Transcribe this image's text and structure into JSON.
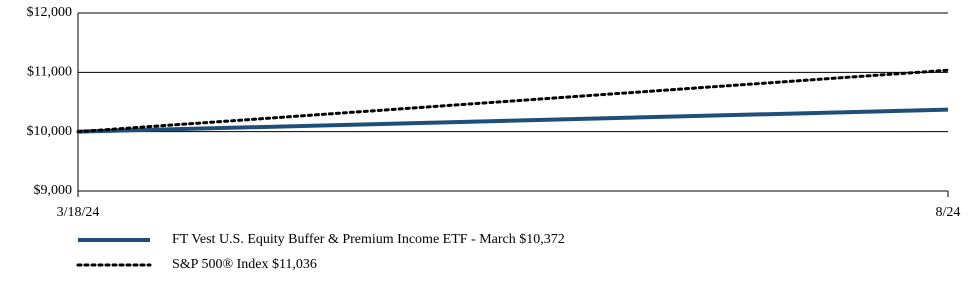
{
  "chart_data": {
    "type": "line",
    "categories": [
      "3/18/24",
      "8/24"
    ],
    "series": [
      {
        "name": "FT Vest U.S. Equity Buffer & Premium Income ETF - March $10,372",
        "color": "#1f4e79",
        "style": "solid",
        "values": [
          10000,
          10372
        ]
      },
      {
        "name": "S&P 500® Index $11,036",
        "color": "#000000",
        "style": "dotted",
        "values": [
          10000,
          11036
        ]
      }
    ],
    "ylim": [
      9000,
      12000
    ],
    "yticks": [
      {
        "value": 9000,
        "label": "$9,000"
      },
      {
        "value": 10000,
        "label": "$10,000"
      },
      {
        "value": 11000,
        "label": "$11,000"
      },
      {
        "value": 12000,
        "label": "$12,000"
      }
    ],
    "grid": true
  }
}
